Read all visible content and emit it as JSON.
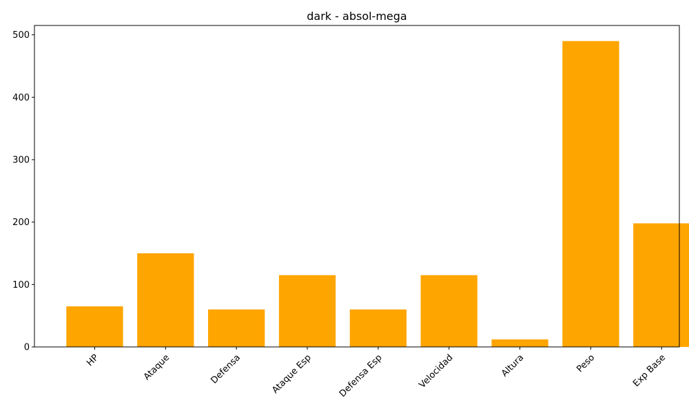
{
  "chart_data": {
    "type": "bar",
    "title": "dark - absol-mega",
    "xlabel": "",
    "ylabel": "",
    "categories": [
      "HP",
      "Ataque",
      "Defensa",
      "Ataque Esp",
      "Defensa Esp",
      "Velocidad",
      "Altura",
      "Peso",
      "Exp Base"
    ],
    "values": [
      65,
      150,
      60,
      115,
      60,
      115,
      12,
      490,
      198
    ],
    "ylim": [
      0,
      515
    ],
    "yticks": [
      0,
      100,
      200,
      300,
      400,
      500
    ],
    "bar_color": "#ffa500",
    "grid": false,
    "legend": "none"
  }
}
